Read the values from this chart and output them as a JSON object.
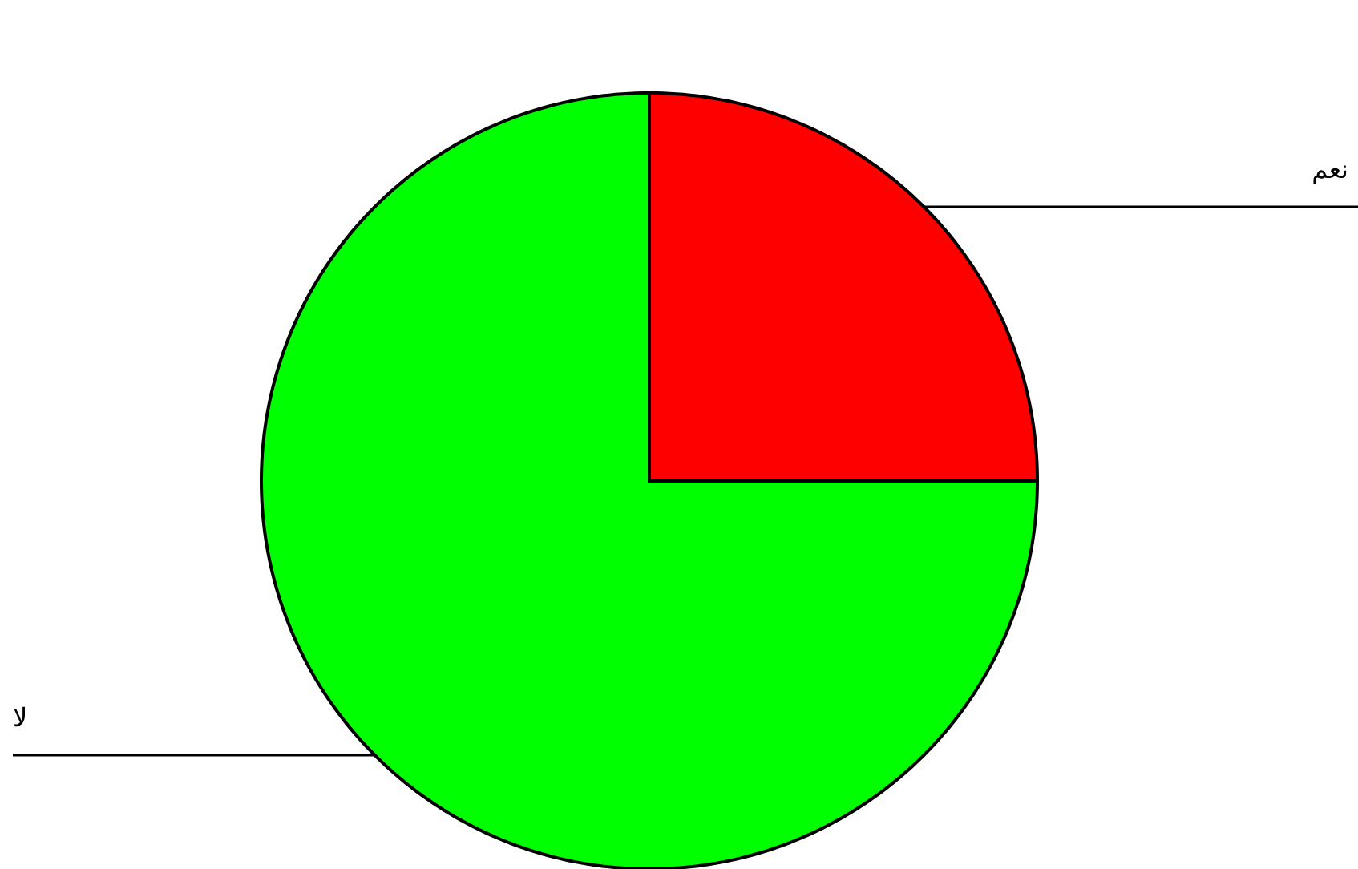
{
  "chart_data": {
    "type": "pie",
    "categories": [
      "نعم",
      "لا"
    ],
    "values": [
      25,
      75
    ],
    "colors": [
      "#ff0000",
      "#00ff00"
    ]
  }
}
